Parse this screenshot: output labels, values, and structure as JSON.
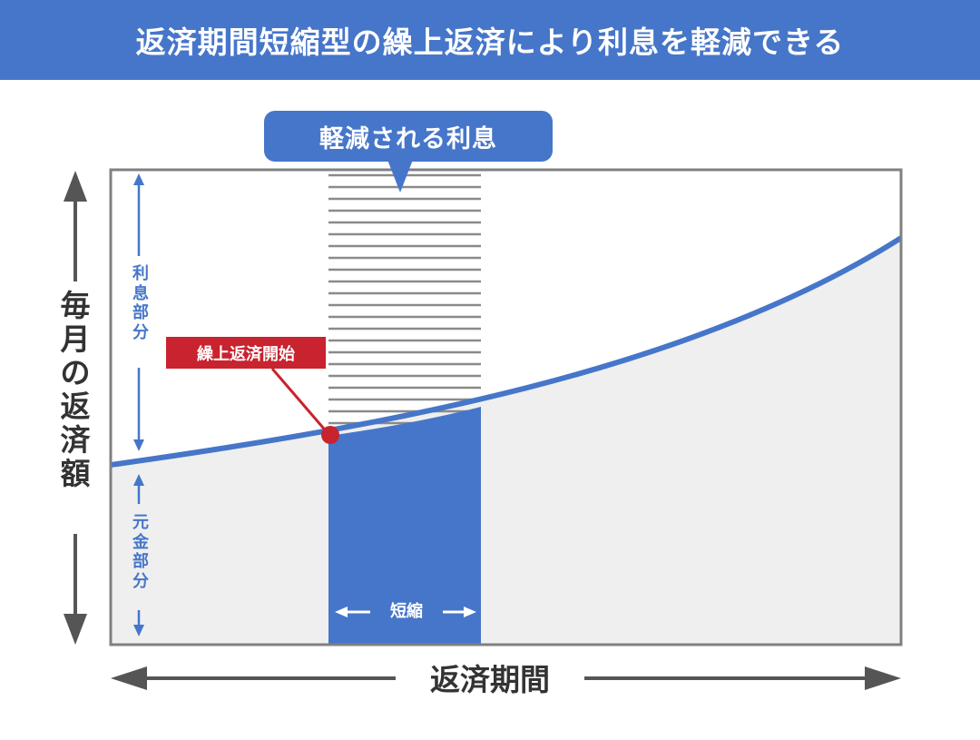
{
  "title": "返済期間短縮型の繰上返済により利息を軽減できる",
  "callout": "軽減される利息",
  "y_axis_label": [
    "毎",
    "月",
    "の",
    "返",
    "済",
    "額"
  ],
  "x_axis_label": "返済期間",
  "interest_part_label": [
    "利",
    "息",
    "部",
    "分"
  ],
  "principal_part_label": [
    "元",
    "金",
    "部",
    "分"
  ],
  "prepayment_start_label": "繰上返済開始",
  "shortening_label": "短縮",
  "colors": {
    "accent_blue": "#4676c9",
    "marker_red": "#c8232e",
    "principal_fill": "#efefef",
    "frame_gray": "#808080",
    "stripe_gray": "#8a8a8a",
    "axis_gray": "#555555"
  }
}
